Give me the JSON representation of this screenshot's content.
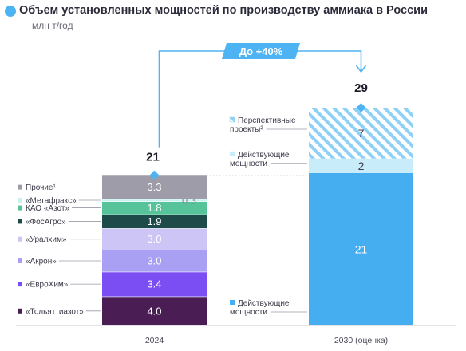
{
  "title": "Объем установленных мощностей по производству аммиака в России",
  "unit": "млн т/год",
  "colors": {
    "title_dot": "#4eb3f2",
    "arrow": "#4eb3f2",
    "existing_2030": "#45aef0",
    "existing_2030_increment": "#c9ecfa",
    "prospective_hatch": "#8fd0f6",
    "total_marker": "#4eb3f2"
  },
  "chart_data": {
    "type": "bar",
    "stacked": true,
    "categories": [
      "2024",
      "2030 (оценка)"
    ],
    "bars": [
      {
        "category": "2024",
        "total": 21,
        "segments": [
          {
            "name": "«Тольяттиазот»",
            "value": 4.0,
            "label": "4.0",
            "color": "#4a1e55"
          },
          {
            "name": "«ЕвроХим»",
            "value": 3.4,
            "label": "3.4",
            "color": "#7a4ef2"
          },
          {
            "name": "«Акрон»",
            "value": 3.0,
            "label": "3.0",
            "color": "#a9a0f3"
          },
          {
            "name": "«Уралхим»",
            "value": 3.0,
            "label": "3.0",
            "color": "#cdc5f5"
          },
          {
            "name": "«ФосАгро»",
            "value": 1.9,
            "label": "1.9",
            "color": "#1e4a4a"
          },
          {
            "name": "КАО «Азот»",
            "value": 1.8,
            "label": "1.8",
            "color": "#57c39a"
          },
          {
            "name": "«Метафракс»",
            "value": 0.3,
            "label": "0.3",
            "color": "#c8f0ec"
          },
          {
            "name": "Прочие¹",
            "value": 3.3,
            "label": "3.3",
            "color": "#9d9ca8"
          }
        ]
      },
      {
        "category": "2030 (оценка)",
        "total": 29,
        "segments": [
          {
            "name": "Действующие мощности",
            "value": 21,
            "label": "21",
            "color": "#45aef0"
          },
          {
            "name": "Действующие мощности",
            "value": 2,
            "label": "2",
            "color": "#c9ecfa"
          },
          {
            "name": "Перспективные проекты²",
            "value": 7,
            "label": "7",
            "color": "#8fd0f6",
            "pattern": "hatch"
          }
        ]
      }
    ],
    "totals": [
      {
        "category": "2024",
        "value": "21"
      },
      {
        "category": "2030 (оценка)",
        "value": "29"
      }
    ],
    "growth_annotation": "До +40%",
    "right_legend": [
      {
        "lines": [
          "Перспективные",
          "проекты²"
        ],
        "segment_index": 2,
        "swatch": "hatch"
      },
      {
        "lines": [
          "Действующие",
          "мощности"
        ],
        "segment_index": 1,
        "swatch": "light"
      },
      {
        "lines": [
          "Действующие",
          "мощности"
        ],
        "segment_index": 0,
        "swatch": "solid"
      }
    ],
    "ylim": [
      0,
      30
    ]
  }
}
